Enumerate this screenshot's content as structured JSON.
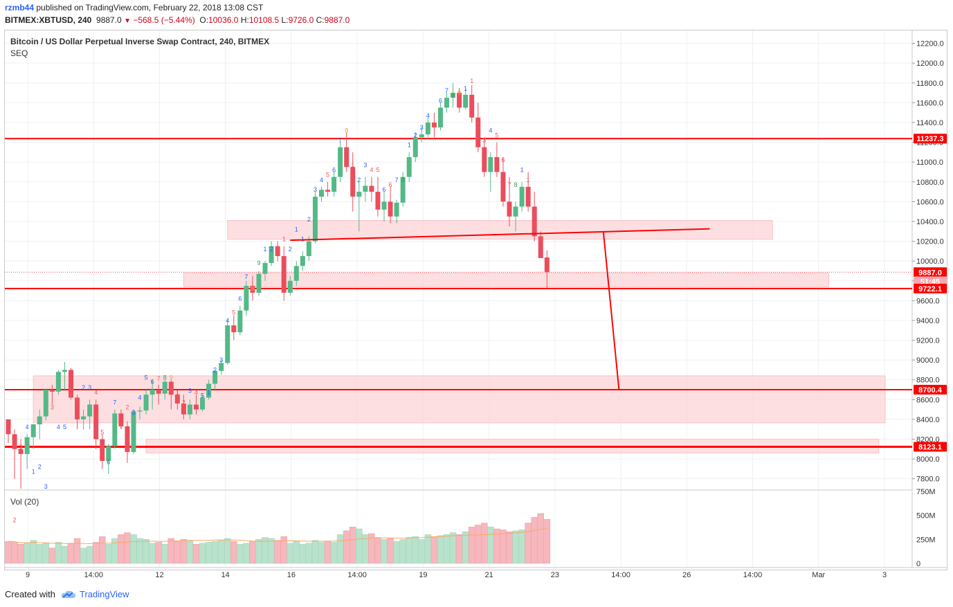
{
  "header": {
    "user": "rzmb44",
    "published_text": "published on TradingView.com, February 22, 2018 13:08 CST",
    "symbol": "BITMEX:XBTUSD, 240",
    "last": "9887.0",
    "change": "−568.5 (−5.44%)",
    "o_label": "O:",
    "o_value": "10036.0",
    "h_label": "H:",
    "h_value": "10108.5",
    "l_label": "L:",
    "l_value": "9726.0",
    "c_label": "C:",
    "c_value": "9887.0"
  },
  "chart_title": "Bitcoin / US Dollar Perpetual Inverse Swap Contract, 240, BITMEX",
  "indicator_label": "SEQ",
  "volume_label": "Vol (20)",
  "footer": {
    "created_with": "Created with",
    "brand": "TradingView"
  },
  "colors": {
    "up": "#53b987",
    "down": "#eb4d5c",
    "up_vol": "#b8e2cb",
    "down_vol": "#f6b7bd",
    "level_line": "#ff0000",
    "zone": "#fdd7da",
    "seq_count": "#2962ff",
    "seq_sell": "#f15a59"
  },
  "chart_data": {
    "type": "candlestick",
    "price_axis": {
      "ticks": [
        "12200.0",
        "12000.0",
        "11800.0",
        "11600.0",
        "11400.0",
        "11200.0",
        "11000.0",
        "10800.0",
        "10600.0",
        "10400.0",
        "10200.0",
        "10000.0",
        "9800.0",
        "9600.0",
        "9400.0",
        "9200.0",
        "9000.0",
        "8800.0",
        "8600.0",
        "8400.0",
        "8200.0",
        "8000.0",
        "7800.0"
      ],
      "range": [
        7700,
        12330
      ]
    },
    "volume_axis": {
      "ticks": [
        "750M",
        "500M",
        "250M",
        "0"
      ],
      "range": [
        0,
        750
      ]
    },
    "time_axis": {
      "labels": [
        "9",
        "14:00",
        "12",
        "14",
        "16",
        "14:00",
        "19",
        "21",
        "23",
        "14:00",
        "26",
        "14:00",
        "Mar",
        "3"
      ]
    },
    "price_labels": [
      {
        "text": "11237.3",
        "price": 11237.3,
        "style": "level"
      },
      {
        "text": "9887.0",
        "price": 9887.0,
        "style": "last"
      },
      {
        "text": "51:45",
        "price": 9795,
        "style": "timer"
      },
      {
        "text": "9722.1",
        "price": 9722.1,
        "style": "level"
      },
      {
        "text": "8700.4",
        "price": 8700.4,
        "style": "level"
      },
      {
        "text": "8123.1",
        "price": 8123.1,
        "style": "level"
      }
    ],
    "horizontal_levels": [
      11237.3,
      9722.1,
      8700.4,
      8123.1
    ],
    "zones": [
      {
        "from_bar": 35,
        "to_bar": 122,
        "low": 10220,
        "high": 10410
      },
      {
        "from_bar": 28,
        "to_bar": 131,
        "low": 9740,
        "high": 9880
      },
      {
        "from_bar": 4,
        "to_bar": 140,
        "low": 8365,
        "high": 8840
      },
      {
        "from_bar": 22,
        "to_bar": 139,
        "low": 8060,
        "high": 8200
      }
    ],
    "neckline": {
      "from_bar": 45,
      "from_price": 10210,
      "to_bar": 112,
      "to_price": 10325
    },
    "projection": [
      {
        "bar": 95,
        "price": 10300
      },
      {
        "bar": 97.5,
        "price": 8700
      }
    ],
    "candles": [
      [
        8400,
        8400,
        8160,
        8250,
        7500,
        230,
        ""
      ],
      [
        8250,
        8300,
        7800,
        8100,
        7360,
        220,
        "2"
      ],
      [
        8100,
        8200,
        7700,
        8050,
        8100,
        200,
        "3"
      ],
      [
        8050,
        8250,
        7900,
        8220,
        8300,
        210,
        "4"
      ],
      [
        8220,
        8350,
        8100,
        8350,
        7850,
        240,
        "1"
      ],
      [
        8350,
        8500,
        8200,
        8430,
        7900,
        200,
        "2"
      ],
      [
        8430,
        8700,
        8390,
        8700,
        7700,
        210,
        "3"
      ],
      [
        8700,
        8750,
        8550,
        8680,
        8500,
        160,
        "3"
      ],
      [
        8680,
        8900,
        8650,
        8880,
        8300,
        220,
        "4"
      ],
      [
        8880,
        8980,
        8700,
        8900,
        8300,
        180,
        "5"
      ],
      [
        8900,
        8920,
        8600,
        8620,
        8630,
        210,
        "6"
      ],
      [
        8620,
        8650,
        8300,
        8400,
        8570,
        260,
        "1"
      ],
      [
        8400,
        8500,
        8300,
        8430,
        8700,
        160,
        "2"
      ],
      [
        8430,
        8600,
        8300,
        8550,
        8700,
        180,
        "3"
      ],
      [
        8550,
        8600,
        8100,
        8200,
        8650,
        220,
        "4"
      ],
      [
        8200,
        8250,
        7900,
        7980,
        8250,
        280,
        "5"
      ],
      [
        7980,
        8150,
        7850,
        8130,
        7950,
        200,
        "6"
      ],
      [
        8130,
        8500,
        8100,
        8460,
        8550,
        260,
        "7"
      ],
      [
        8460,
        8500,
        8300,
        8330,
        8320,
        300,
        "1"
      ],
      [
        8330,
        8380,
        7960,
        8070,
        8500,
        320,
        "2"
      ],
      [
        8070,
        8500,
        8050,
        8480,
        8450,
        300,
        "3"
      ],
      [
        8480,
        8530,
        8400,
        8490,
        8600,
        260,
        "4"
      ],
      [
        8490,
        8700,
        8450,
        8650,
        8800,
        250,
        "5"
      ],
      [
        8650,
        8800,
        8500,
        8700,
        8760,
        210,
        "6"
      ],
      [
        8700,
        8750,
        8550,
        8660,
        8790,
        220,
        "7"
      ],
      [
        8660,
        8800,
        8600,
        8780,
        8800,
        200,
        "8"
      ],
      [
        8780,
        8800,
        8500,
        8650,
        8800,
        260,
        "9"
      ],
      [
        8650,
        8700,
        8500,
        8560,
        8650,
        230,
        "1"
      ],
      [
        8560,
        8650,
        8400,
        8450,
        8550,
        250,
        "2"
      ],
      [
        8450,
        8600,
        8400,
        8550,
        8670,
        240,
        "3"
      ],
      [
        8550,
        8650,
        8450,
        8500,
        8650,
        200,
        "4"
      ],
      [
        8500,
        8650,
        8480,
        8620,
        8620,
        210,
        "5"
      ],
      [
        8620,
        8800,
        8600,
        8760,
        8650,
        220,
        "1"
      ],
      [
        8760,
        8900,
        8700,
        8890,
        8880,
        230,
        "2"
      ],
      [
        8890,
        9000,
        8850,
        8970,
        8980,
        240,
        "3"
      ],
      [
        8970,
        9400,
        8950,
        9350,
        9380,
        260,
        "4"
      ],
      [
        9350,
        9450,
        9200,
        9280,
        9460,
        230,
        "5"
      ],
      [
        9280,
        9550,
        9250,
        9500,
        9600,
        200,
        "6"
      ],
      [
        9500,
        9800,
        9450,
        9750,
        9820,
        210,
        "7"
      ],
      [
        9750,
        9850,
        9600,
        9680,
        9700,
        230,
        "8"
      ],
      [
        9680,
        9900,
        9650,
        9870,
        9960,
        250,
        "9"
      ],
      [
        9870,
        10000,
        9800,
        9980,
        10100,
        270,
        "1"
      ],
      [
        9980,
        10200,
        9950,
        10150,
        10100,
        260,
        "2"
      ],
      [
        10150,
        10200,
        10000,
        10050,
        10100,
        240,
        "3"
      ],
      [
        10050,
        10150,
        9600,
        9680,
        10200,
        280,
        "1"
      ],
      [
        9680,
        9850,
        9650,
        9800,
        10100,
        210,
        "2"
      ],
      [
        9800,
        10000,
        9750,
        9950,
        10300,
        230,
        "1"
      ],
      [
        9950,
        10100,
        9900,
        10050,
        10200,
        200,
        "1"
      ],
      [
        10050,
        10250,
        10000,
        10200,
        10400,
        210,
        "2"
      ],
      [
        10200,
        10700,
        10180,
        10650,
        10700,
        240,
        "3"
      ],
      [
        10650,
        10750,
        10600,
        10720,
        10800,
        220,
        "4"
      ],
      [
        10720,
        10800,
        10650,
        10700,
        10850,
        230,
        "5"
      ],
      [
        10700,
        10900,
        10650,
        10850,
        10900,
        220,
        "6"
      ],
      [
        10850,
        11200,
        10800,
        11150,
        11200,
        300,
        "7"
      ],
      [
        11150,
        11300,
        10900,
        10950,
        11300,
        340,
        "8"
      ],
      [
        10950,
        11100,
        10500,
        10650,
        10950,
        380,
        "1"
      ],
      [
        10650,
        10800,
        10300,
        10700,
        10800,
        360,
        "2"
      ],
      [
        10700,
        10850,
        10600,
        10760,
        10950,
        300,
        "3"
      ],
      [
        10760,
        10850,
        10600,
        10700,
        10900,
        310,
        "4"
      ],
      [
        10700,
        10850,
        10450,
        10520,
        10900,
        270,
        "5"
      ],
      [
        10520,
        10700,
        10400,
        10600,
        10700,
        250,
        "6"
      ],
      [
        10600,
        10750,
        10380,
        10450,
        10750,
        260,
        "6"
      ],
      [
        10450,
        10620,
        10380,
        10590,
        10800,
        230,
        "7"
      ],
      [
        10590,
        10900,
        10550,
        10850,
        10800,
        250,
        "8"
      ],
      [
        10850,
        11100,
        10800,
        11050,
        11150,
        270,
        "1"
      ],
      [
        11050,
        11300,
        11000,
        11250,
        11250,
        280,
        "2"
      ],
      [
        11250,
        11350,
        11200,
        11280,
        11330,
        250,
        "3"
      ],
      [
        11280,
        11450,
        11250,
        11400,
        11450,
        300,
        "4"
      ],
      [
        11400,
        11500,
        11250,
        11350,
        11350,
        280,
        "5"
      ],
      [
        11350,
        11600,
        11320,
        11550,
        11600,
        290,
        "6"
      ],
      [
        11550,
        11700,
        11500,
        11650,
        11700,
        300,
        "7"
      ],
      [
        11650,
        11800,
        11550,
        11700,
        11650,
        320,
        "8"
      ],
      [
        11700,
        11750,
        11500,
        11550,
        11680,
        300,
        "9"
      ],
      [
        11550,
        11750,
        11530,
        11680,
        11720,
        330,
        "1"
      ],
      [
        11680,
        11780,
        11400,
        11450,
        11800,
        380,
        "1"
      ],
      [
        11450,
        11600,
        11100,
        11150,
        11350,
        400,
        "2"
      ],
      [
        11150,
        11250,
        10850,
        10900,
        11200,
        420,
        "3"
      ],
      [
        10900,
        11100,
        10700,
        11050,
        11300,
        380,
        "4"
      ],
      [
        11050,
        11200,
        10850,
        10900,
        11250,
        360,
        "5"
      ],
      [
        10900,
        11050,
        10550,
        10600,
        11000,
        350,
        "6"
      ],
      [
        10600,
        10850,
        10350,
        10450,
        10750,
        330,
        "7"
      ],
      [
        10450,
        10600,
        10300,
        10550,
        10750,
        340,
        "8"
      ],
      [
        10550,
        10800,
        10500,
        10750,
        10900,
        350,
        "1"
      ],
      [
        10750,
        10900,
        10500,
        10550,
        10800,
        420,
        "1"
      ],
      [
        10550,
        10700,
        10200,
        10250,
        10350,
        480,
        "2"
      ],
      [
        10250,
        10300,
        10050,
        10030,
        10200,
        520,
        "3"
      ],
      [
        10036,
        10108.5,
        9726,
        9887,
        9950,
        460,
        ""
      ]
    ]
  }
}
